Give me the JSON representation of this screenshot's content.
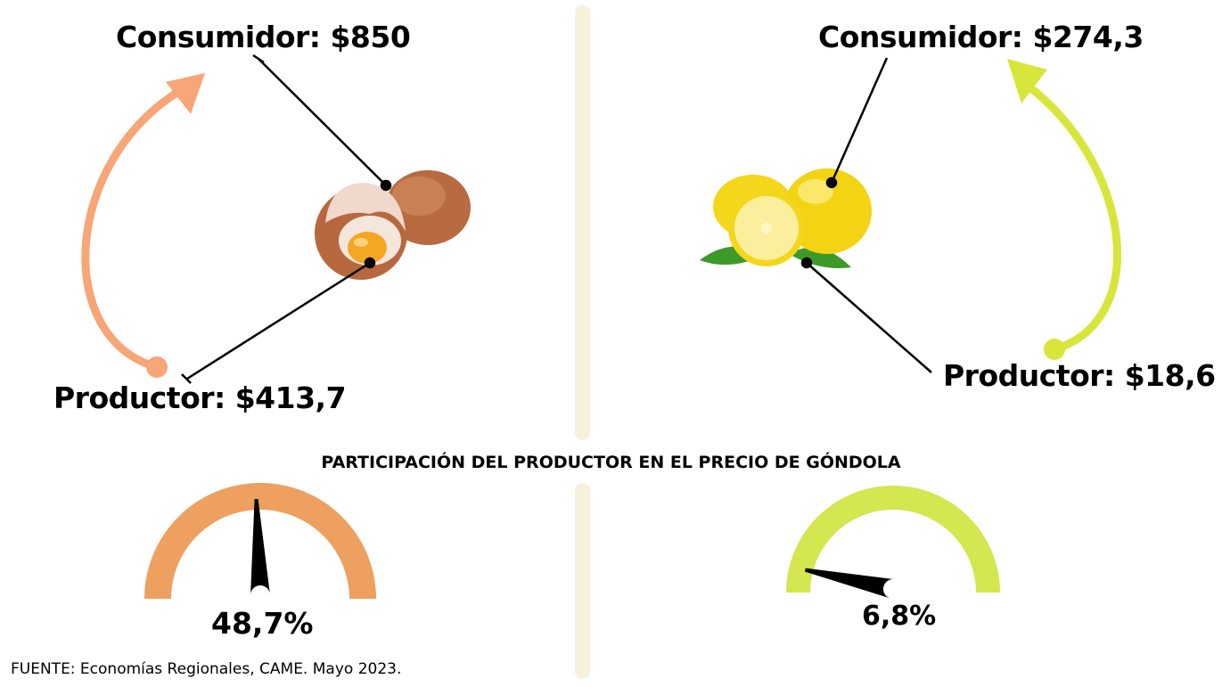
{
  "egg": {
    "consumer_label": "Consumidor: $850",
    "producer_label": "Productor: $413,7",
    "share_percent": 48.7,
    "share_label": "48,7%",
    "color": "#eda05f",
    "arrow_color": "#f8a577"
  },
  "lemon": {
    "consumer_label": "Consumidor: $274,3",
    "producer_label": "Productor: $18,6",
    "share_percent": 6.8,
    "share_label": "6,8%",
    "color": "#d4e650",
    "arrow_color": "#d8e63c"
  },
  "section_title": "PARTICIPACIÓN DEL PRODUCTOR EN EL PRECIO DE GÓNDOLA",
  "source": "FUENTE: Economías Regionales, CAME. Mayo 2023.",
  "divider_color": "#f7f1dc"
}
